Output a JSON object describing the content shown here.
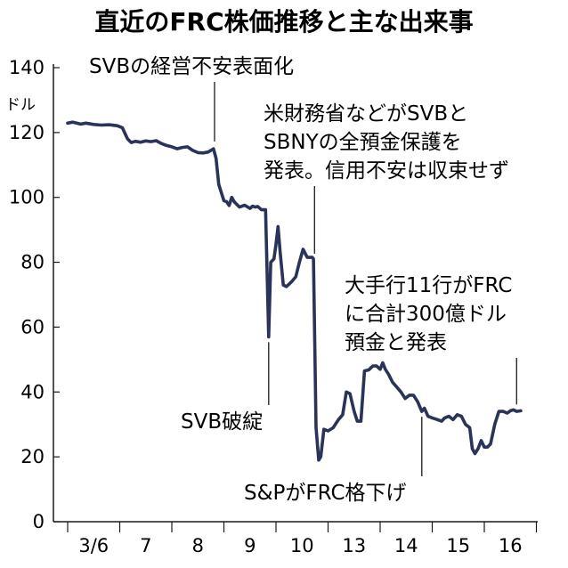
{
  "chart_data": {
    "type": "line",
    "title": "直近のFRC株価推移と主な出来事",
    "yunit": "ドル",
    "ylim": [
      0,
      140
    ],
    "yticks": [
      0,
      20,
      40,
      60,
      80,
      100,
      120,
      140
    ],
    "categories": [
      "3/6",
      "7",
      "8",
      "9",
      "10",
      "13",
      "14",
      "15",
      "16"
    ],
    "grid": false,
    "legend": "none",
    "line_color": "#2a3358",
    "series": [
      {
        "values": [
          [
            0.0,
            122.9
          ],
          [
            0.1,
            123.2
          ],
          [
            0.25,
            122.6
          ],
          [
            0.35,
            122.9
          ],
          [
            0.5,
            122.5
          ],
          [
            0.65,
            122.3
          ],
          [
            0.8,
            122.4
          ],
          [
            0.95,
            122.1
          ],
          [
            1.05,
            121.5
          ],
          [
            1.15,
            118.0
          ],
          [
            1.22,
            116.9
          ],
          [
            1.3,
            117.3
          ],
          [
            1.4,
            117.0
          ],
          [
            1.5,
            117.4
          ],
          [
            1.6,
            117.2
          ],
          [
            1.7,
            117.5
          ],
          [
            1.8,
            116.6
          ],
          [
            1.9,
            116.0
          ],
          [
            2.0,
            115.6
          ],
          [
            2.1,
            115.0
          ],
          [
            2.2,
            115.4
          ],
          [
            2.3,
            115.6
          ],
          [
            2.4,
            114.5
          ],
          [
            2.5,
            113.8
          ],
          [
            2.6,
            113.7
          ],
          [
            2.7,
            114.0
          ],
          [
            2.8,
            115.0
          ],
          [
            2.85,
            112.0
          ],
          [
            2.9,
            104.0
          ],
          [
            2.95,
            101.5
          ],
          [
            3.0,
            99.0
          ],
          [
            3.05,
            98.7
          ],
          [
            3.1,
            97.5
          ],
          [
            3.15,
            100.0
          ],
          [
            3.2,
            98.6
          ],
          [
            3.3,
            97.0
          ],
          [
            3.4,
            97.6
          ],
          [
            3.5,
            96.6
          ],
          [
            3.55,
            97.3
          ],
          [
            3.6,
            97.0
          ],
          [
            3.65,
            97.2
          ],
          [
            3.72,
            96.2
          ],
          [
            3.8,
            96.2
          ],
          [
            3.86,
            57.0
          ],
          [
            3.9,
            80.0
          ],
          [
            3.96,
            81.0
          ],
          [
            4.0,
            85.5
          ],
          [
            4.04,
            91.0
          ],
          [
            4.08,
            83.0
          ],
          [
            4.14,
            73.0
          ],
          [
            4.2,
            72.5
          ],
          [
            4.3,
            74.0
          ],
          [
            4.38,
            75.5
          ],
          [
            4.45,
            80.0
          ],
          [
            4.52,
            84.0
          ],
          [
            4.6,
            81.5
          ],
          [
            4.7,
            81.5
          ],
          [
            4.72,
            81.0
          ],
          [
            4.77,
            29.0
          ],
          [
            4.82,
            19.0
          ],
          [
            4.86,
            20.0
          ],
          [
            4.92,
            28.5
          ],
          [
            5.0,
            28.0
          ],
          [
            5.1,
            29.0
          ],
          [
            5.2,
            31.5
          ],
          [
            5.28,
            33.0
          ],
          [
            5.35,
            40.0
          ],
          [
            5.42,
            39.5
          ],
          [
            5.5,
            34.0
          ],
          [
            5.56,
            31.0
          ],
          [
            5.63,
            31.0
          ],
          [
            5.7,
            46.5
          ],
          [
            5.78,
            46.8
          ],
          [
            5.86,
            48.0
          ],
          [
            5.93,
            48.0
          ],
          [
            6.0,
            47.0
          ],
          [
            6.05,
            49.0
          ],
          [
            6.1,
            47.0
          ],
          [
            6.16,
            45.5
          ],
          [
            6.24,
            43.0
          ],
          [
            6.32,
            41.5
          ],
          [
            6.4,
            40.0
          ],
          [
            6.48,
            38.0
          ],
          [
            6.56,
            39.0
          ],
          [
            6.64,
            39.0
          ],
          [
            6.72,
            37.0
          ],
          [
            6.8,
            34.0
          ],
          [
            6.85,
            35.0
          ],
          [
            6.92,
            32.5
          ],
          [
            7.0,
            32.0
          ],
          [
            7.1,
            31.5
          ],
          [
            7.18,
            31.0
          ],
          [
            7.24,
            32.0
          ],
          [
            7.32,
            32.5
          ],
          [
            7.4,
            31.5
          ],
          [
            7.48,
            33.0
          ],
          [
            7.56,
            32.5
          ],
          [
            7.64,
            30.0
          ],
          [
            7.72,
            29.0
          ],
          [
            7.77,
            22.5
          ],
          [
            7.82,
            21.0
          ],
          [
            7.88,
            22.5
          ],
          [
            7.94,
            25.0
          ],
          [
            8.0,
            23.0
          ],
          [
            8.06,
            23.0
          ],
          [
            8.12,
            24.0
          ],
          [
            8.2,
            30.0
          ],
          [
            8.28,
            34.0
          ],
          [
            8.36,
            34.0
          ],
          [
            8.44,
            33.5
          ],
          [
            8.5,
            34.2
          ],
          [
            8.56,
            34.5
          ],
          [
            8.62,
            34.0
          ],
          [
            8.7,
            34.2
          ]
        ]
      }
    ],
    "annotations": [
      {
        "id": "ann1",
        "lines": [
          "SVBの経営不安表面化"
        ],
        "x": 2.82,
        "y": 115.6,
        "target_y": 115.6
      },
      {
        "id": "ann2",
        "lines": [
          "米財務省などがSVBと",
          "SBNYの全預金保護を",
          "発表。信用不安は収束せず"
        ],
        "x": 4.74,
        "y": 81.0,
        "target_y": 81.0
      },
      {
        "id": "ann3",
        "lines": [
          "大手行11行がFRC",
          "に合計300億ドル",
          "預金と発表"
        ],
        "x": 8.62,
        "y": 34.5,
        "target_y": 34.5
      },
      {
        "id": "ann4",
        "lines": [
          "SVB破綻"
        ],
        "x": 3.86,
        "y": 57.0,
        "target_y": 57.0
      },
      {
        "id": "ann5",
        "lines": [
          "S&PがFRC格下げ"
        ],
        "x": 6.8,
        "y": 34.0,
        "target_y": 34.0
      }
    ]
  }
}
